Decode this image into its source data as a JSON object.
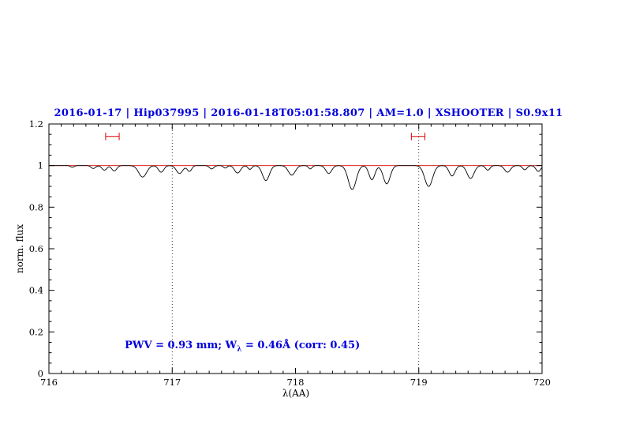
{
  "chart_data": {
    "type": "line",
    "title": "2016-01-17 | Hip037995 | 2016-01-18T05:01:58.807 | AM=1.0 | XSHOOTER | S0.9x11",
    "title_color": "#0000dd",
    "xlabel": "λ(AA)",
    "ylabel": "norm. flux",
    "xlim": [
      716,
      720
    ],
    "ylim": [
      0,
      1.2
    ],
    "x_ticks": [
      716,
      717,
      718,
      719,
      720
    ],
    "x_tick_labels": [
      "716",
      "717",
      "718",
      "719",
      "720"
    ],
    "y_ticks": [
      0,
      0.2,
      0.4,
      0.6,
      0.8,
      1,
      1.2
    ],
    "y_tick_labels": [
      "0",
      "0.2",
      "0.4",
      "0.6",
      "0.8",
      "1",
      "1.2"
    ],
    "x_minor_step": 0.1,
    "y_minor_step": 0.05,
    "grid": false,
    "dotted_vlines": [
      717,
      719
    ],
    "continuum": {
      "y": 1.0,
      "color": "#dd0000"
    },
    "interval_markers": {
      "color": "#dd0000",
      "y": 1.14,
      "cap_half_height": 0.018,
      "ranges": [
        [
          716.46,
          716.57
        ],
        [
          718.94,
          719.05
        ]
      ]
    },
    "annotation": {
      "text_pre": "PWV = 0.93 mm; W",
      "text_sub": "λ",
      "text_post": " = 0.46Å (corr: 0.45)",
      "color": "#0000dd",
      "x": 716.5,
      "y": 0.2
    },
    "spectrum": {
      "color": "#000000",
      "continuum_level": 1.0,
      "sample_step": 0.004,
      "absorption_lines": [
        {
          "center": 716.19,
          "depth": 0.008,
          "sigma": 0.015
        },
        {
          "center": 716.36,
          "depth": 0.014,
          "sigma": 0.018
        },
        {
          "center": 716.45,
          "depth": 0.022,
          "sigma": 0.02
        },
        {
          "center": 716.53,
          "depth": 0.026,
          "sigma": 0.02
        },
        {
          "center": 716.76,
          "depth": 0.055,
          "sigma": 0.032
        },
        {
          "center": 716.91,
          "depth": 0.032,
          "sigma": 0.022
        },
        {
          "center": 717.06,
          "depth": 0.038,
          "sigma": 0.026
        },
        {
          "center": 717.14,
          "depth": 0.028,
          "sigma": 0.018
        },
        {
          "center": 717.32,
          "depth": 0.016,
          "sigma": 0.018
        },
        {
          "center": 717.43,
          "depth": 0.012,
          "sigma": 0.015
        },
        {
          "center": 717.53,
          "depth": 0.036,
          "sigma": 0.024
        },
        {
          "center": 717.63,
          "depth": 0.018,
          "sigma": 0.016
        },
        {
          "center": 717.76,
          "depth": 0.072,
          "sigma": 0.028
        },
        {
          "center": 717.97,
          "depth": 0.046,
          "sigma": 0.028
        },
        {
          "center": 718.12,
          "depth": 0.016,
          "sigma": 0.015
        },
        {
          "center": 718.27,
          "depth": 0.038,
          "sigma": 0.024
        },
        {
          "center": 718.46,
          "depth": 0.115,
          "sigma": 0.032
        },
        {
          "center": 718.62,
          "depth": 0.068,
          "sigma": 0.024
        },
        {
          "center": 718.74,
          "depth": 0.088,
          "sigma": 0.028
        },
        {
          "center": 719.08,
          "depth": 0.1,
          "sigma": 0.032
        },
        {
          "center": 719.27,
          "depth": 0.05,
          "sigma": 0.024
        },
        {
          "center": 719.42,
          "depth": 0.062,
          "sigma": 0.028
        },
        {
          "center": 719.56,
          "depth": 0.022,
          "sigma": 0.018
        },
        {
          "center": 719.72,
          "depth": 0.032,
          "sigma": 0.024
        },
        {
          "center": 719.86,
          "depth": 0.02,
          "sigma": 0.018
        },
        {
          "center": 719.97,
          "depth": 0.028,
          "sigma": 0.02
        }
      ]
    }
  }
}
